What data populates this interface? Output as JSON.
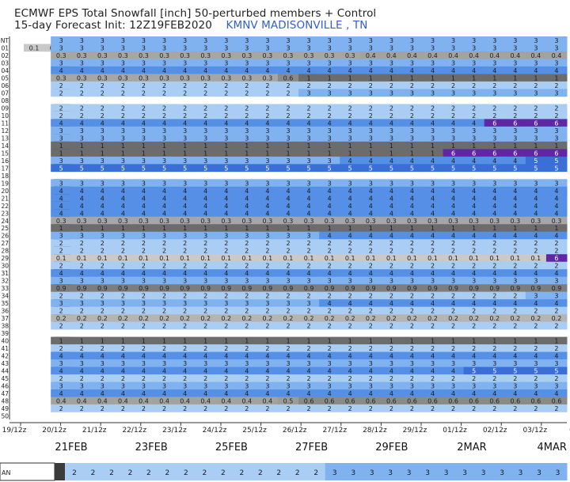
{
  "header": {
    "title_line1": "ECMWF EPS Total Snowfall [inch]  50-perturbed members + Control",
    "title_line2_prefix": "15-day Forecast Init: 12Z19FEB2020",
    "station": "KMNV MADISONVILLE  , TN"
  },
  "chart_data": {
    "type": "heatmap",
    "title": "ECMWF EPS Total Snowfall [inch]  50-perturbed members + Control",
    "subtitle": "15-day Forecast Init: 12Z19FEB2020",
    "station": "KMNV MADISONVILLE  , TN",
    "rows": [
      "NT",
      "01",
      "02",
      "03",
      "04",
      "05",
      "06",
      "07",
      "08",
      "09",
      "10",
      "11",
      "12",
      "13",
      "14",
      "15",
      "16",
      "17",
      "18",
      "19",
      "20",
      "21",
      "22",
      "23",
      "24",
      "25",
      "26",
      "27",
      "28",
      "29",
      "30",
      "31",
      "32",
      "33",
      "34",
      "35",
      "36",
      "37",
      "38",
      "39",
      "40",
      "41",
      "42",
      "43",
      "44",
      "45",
      "46",
      "47",
      "48",
      "49",
      "50"
    ],
    "x_tick_labels": [
      "19/12z",
      "20/12z",
      "21/12z",
      "22/12z",
      "23/12z",
      "24/12z",
      "25/12z",
      "26/12z",
      "27/12z",
      "28/12z",
      "29/12z",
      "01/12z",
      "02/12z",
      "03/12z",
      "04/"
    ],
    "date_labels": [
      "21FEB",
      "23FEB",
      "25FEB",
      "27FEB",
      "29FEB",
      "2MAR",
      "4MAR"
    ],
    "mean_row_label": "AN",
    "mean_row_values": [
      "2",
      "2",
      "2",
      "2",
      "2",
      "2",
      "2",
      "2",
      "2",
      "2",
      "2",
      "2",
      "2",
      "2",
      "3",
      "3",
      "3",
      "3",
      "3",
      "3",
      "3",
      "3",
      "3",
      "3",
      "3",
      "3",
      "3"
    ],
    "member_rows": [
      {
        "id": "NT",
        "segments": [
          {
            "v": "3",
            "from": 2,
            "to": 26
          }
        ]
      },
      {
        "id": "01",
        "segments": [
          {
            "v": "0.1",
            "from": 0,
            "to": 1
          },
          {
            "v": "3",
            "from": 2,
            "to": 26
          }
        ]
      },
      {
        "id": "02",
        "segments": [
          {
            "v": "0.3",
            "from": 2,
            "to": 16
          },
          {
            "v": "0.4",
            "from": 17,
            "to": 26
          }
        ]
      },
      {
        "id": "03",
        "segments": [
          {
            "v": "3",
            "from": 2,
            "to": 26
          }
        ]
      },
      {
        "id": "04",
        "segments": [
          {
            "v": "4",
            "from": 2,
            "to": 26
          }
        ]
      },
      {
        "id": "05",
        "segments": [
          {
            "v": "0.3",
            "from": 2,
            "to": 12
          },
          {
            "v": "0.6",
            "from": 13,
            "to": 13
          },
          {
            "v": "1",
            "from": 14,
            "to": 26
          }
        ]
      },
      {
        "id": "06",
        "segments": [
          {
            "v": "2",
            "from": 2,
            "to": 26
          }
        ]
      },
      {
        "id": "07",
        "segments": [
          {
            "v": "2",
            "from": 2,
            "to": 13
          },
          {
            "v": "3",
            "from": 14,
            "to": 26
          }
        ]
      },
      {
        "id": "08",
        "segments": []
      },
      {
        "id": "09",
        "segments": [
          {
            "v": "2",
            "from": 2,
            "to": 26
          }
        ]
      },
      {
        "id": "10",
        "segments": [
          {
            "v": "2",
            "from": 2,
            "to": 26
          }
        ]
      },
      {
        "id": "11",
        "segments": [
          {
            "v": "4",
            "from": 2,
            "to": 22
          },
          {
            "v": "6",
            "from": 23,
            "to": 26
          }
        ]
      },
      {
        "id": "12",
        "segments": [
          {
            "v": "3",
            "from": 2,
            "to": 26
          }
        ]
      },
      {
        "id": "13",
        "segments": [
          {
            "v": "3",
            "from": 2,
            "to": 26
          }
        ]
      },
      {
        "id": "14",
        "segments": [
          {
            "v": "1",
            "from": 2,
            "to": 26
          }
        ]
      },
      {
        "id": "15",
        "segments": [
          {
            "v": "1",
            "from": 2,
            "to": 20
          },
          {
            "v": "6",
            "from": 21,
            "to": 26
          }
        ]
      },
      {
        "id": "16",
        "segments": [
          {
            "v": "3",
            "from": 2,
            "to": 15
          },
          {
            "v": "4",
            "from": 16,
            "to": 24
          },
          {
            "v": "5",
            "from": 25,
            "to": 26
          }
        ]
      },
      {
        "id": "17",
        "segments": [
          {
            "v": "5",
            "from": 2,
            "to": 26
          }
        ]
      },
      {
        "id": "18",
        "segments": []
      },
      {
        "id": "19",
        "segments": [
          {
            "v": "3",
            "from": 2,
            "to": 26
          }
        ]
      },
      {
        "id": "20",
        "segments": [
          {
            "v": "4",
            "from": 2,
            "to": 26
          }
        ]
      },
      {
        "id": "21",
        "segments": [
          {
            "v": "4",
            "from": 2,
            "to": 26
          }
        ]
      },
      {
        "id": "22",
        "segments": [
          {
            "v": "4",
            "from": 2,
            "to": 26
          }
        ]
      },
      {
        "id": "23",
        "segments": [
          {
            "v": "4",
            "from": 2,
            "to": 26
          }
        ]
      },
      {
        "id": "24",
        "segments": [
          {
            "v": "0.3",
            "from": 2,
            "to": 26
          }
        ]
      },
      {
        "id": "25",
        "segments": [
          {
            "v": "1",
            "from": 2,
            "to": 26
          }
        ]
      },
      {
        "id": "26",
        "segments": [
          {
            "v": "3",
            "from": 2,
            "to": 14
          },
          {
            "v": "4",
            "from": 15,
            "to": 26
          }
        ]
      },
      {
        "id": "27",
        "segments": [
          {
            "v": "2",
            "from": 2,
            "to": 26
          }
        ]
      },
      {
        "id": "28",
        "segments": [
          {
            "v": "2",
            "from": 2,
            "to": 26
          }
        ]
      },
      {
        "id": "29",
        "segments": [
          {
            "v": "0.1",
            "from": 2,
            "to": 25
          },
          {
            "v": "6",
            "from": 26,
            "to": 26
          }
        ]
      },
      {
        "id": "30",
        "segments": [
          {
            "v": "2",
            "from": 2,
            "to": 26
          }
        ]
      },
      {
        "id": "31",
        "segments": [
          {
            "v": "4",
            "from": 2,
            "to": 26
          }
        ]
      },
      {
        "id": "32",
        "segments": [
          {
            "v": "3",
            "from": 2,
            "to": 26
          }
        ]
      },
      {
        "id": "33",
        "segments": [
          {
            "v": "0.9",
            "from": 2,
            "to": 26
          }
        ]
      },
      {
        "id": "34",
        "segments": [
          {
            "v": "2",
            "from": 2,
            "to": 24
          },
          {
            "v": "3",
            "from": 25,
            "to": 26
          }
        ]
      },
      {
        "id": "35",
        "segments": [
          {
            "v": "3",
            "from": 2,
            "to": 14
          },
          {
            "v": "4",
            "from": 15,
            "to": 26
          }
        ]
      },
      {
        "id": "36",
        "segments": [
          {
            "v": "2",
            "from": 2,
            "to": 26
          }
        ]
      },
      {
        "id": "37",
        "segments": [
          {
            "v": "0.2",
            "from": 2,
            "to": 26
          }
        ]
      },
      {
        "id": "38",
        "segments": [
          {
            "v": "2",
            "from": 2,
            "to": 26
          }
        ]
      },
      {
        "id": "39",
        "segments": []
      },
      {
        "id": "40",
        "segments": [
          {
            "v": "1",
            "from": 2,
            "to": 26
          }
        ]
      },
      {
        "id": "41",
        "segments": [
          {
            "v": "2",
            "from": 2,
            "to": 26
          }
        ]
      },
      {
        "id": "42",
        "segments": [
          {
            "v": "4",
            "from": 2,
            "to": 26
          }
        ]
      },
      {
        "id": "43",
        "segments": [
          {
            "v": "3",
            "from": 2,
            "to": 26
          }
        ]
      },
      {
        "id": "44",
        "segments": [
          {
            "v": "4",
            "from": 2,
            "to": 21
          },
          {
            "v": "5",
            "from": 22,
            "to": 26
          }
        ]
      },
      {
        "id": "45",
        "segments": [
          {
            "v": "2",
            "from": 2,
            "to": 26
          }
        ]
      },
      {
        "id": "46",
        "segments": [
          {
            "v": "3",
            "from": 2,
            "to": 26
          }
        ]
      },
      {
        "id": "47",
        "segments": [
          {
            "v": "4",
            "from": 2,
            "to": 26
          }
        ]
      },
      {
        "id": "48",
        "segments": [
          {
            "v": "0.4",
            "from": 2,
            "to": 12
          },
          {
            "v": "0.5",
            "from": 13,
            "to": 13
          },
          {
            "v": "0.6",
            "from": 14,
            "to": 26
          }
        ]
      },
      {
        "id": "49",
        "segments": [
          {
            "v": "2",
            "from": 2,
            "to": 26
          }
        ]
      },
      {
        "id": "50",
        "segments": []
      }
    ],
    "color_scale": {
      "0.1": "#c9c9c9",
      "0.2": "#b4b4b4",
      "0.3": "#a6a6a6",
      "0.4": "#a2a2a2",
      "0.5": "#9c9c9c",
      "0.6": "#8a8a8a",
      "0.9": "#7d7d7d",
      "1": "#6c6c6c",
      "2": "#a9cdf3",
      "3": "#7fb2ef",
      "4": "#5590e6",
      "5": "#3a6fd6",
      "6": "#5f27a6",
      "gap": "#ffffff",
      "dark_left": "#3b3b3b"
    }
  }
}
